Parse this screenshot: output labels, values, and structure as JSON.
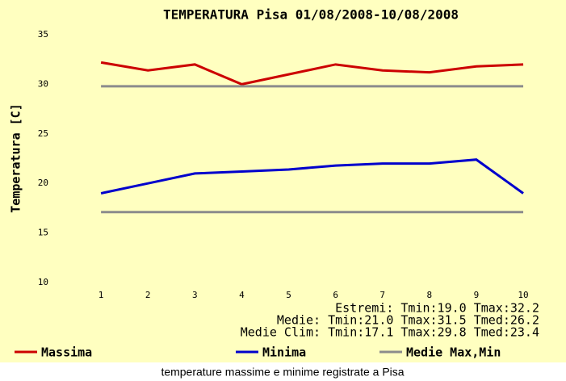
{
  "chart_data": {
    "type": "line",
    "title": "TEMPERATURA Pisa 01/08/2008-10/08/2008",
    "ylabel": "Temperatura [C]",
    "caption": "temperature massime e minime registrate a Pisa",
    "annotations": [
      "Estremi: Tmin:19.0 Tmax:32.2",
      "Medie: Tmin:21.0 Tmax:31.5 Tmed:26.2",
      "Medie Clim: Tmin:17.1 Tmax:29.8 Tmed:23.4"
    ],
    "x": [
      1,
      2,
      3,
      4,
      5,
      6,
      7,
      8,
      9,
      10
    ],
    "series": [
      {
        "name": "Massima",
        "color": "#cc0000",
        "values": [
          32.2,
          31.4,
          32.0,
          30.0,
          31.0,
          32.0,
          31.4,
          31.2,
          31.8,
          32.0
        ]
      },
      {
        "name": "Minima",
        "color": "#0000cc",
        "values": [
          19.0,
          20.0,
          21.0,
          21.2,
          21.4,
          21.8,
          22.0,
          22.0,
          22.4,
          19.0
        ]
      },
      {
        "name": "Medie Max,Min",
        "color": "#8c8c8c",
        "values": [
          29.8,
          29.8,
          29.8,
          29.8,
          29.8,
          29.8,
          29.8,
          29.8,
          29.8,
          29.8
        ]
      },
      {
        "color": "#8c8c8c",
        "values": [
          17.1,
          17.1,
          17.1,
          17.1,
          17.1,
          17.1,
          17.1,
          17.1,
          17.1,
          17.1
        ]
      }
    ],
    "xlim": [
      0,
      10.55
    ],
    "xticks": [
      1,
      2,
      3,
      4,
      5,
      6,
      7,
      8,
      9,
      10
    ],
    "ylim": [
      10,
      35
    ],
    "yticks": [
      10,
      15,
      20,
      25,
      30,
      35
    ]
  }
}
